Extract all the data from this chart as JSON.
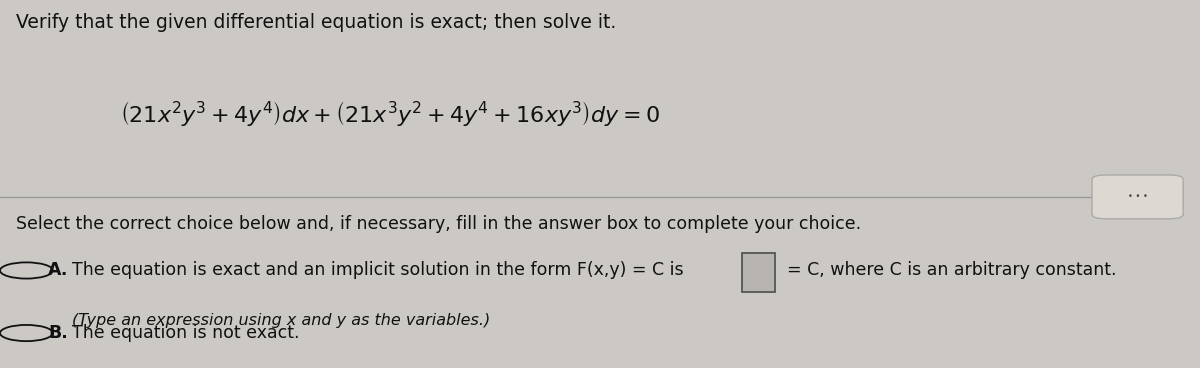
{
  "background_color": "#ccc8c4",
  "title_text": "Verify that the given differential equation is exact; then solve it.",
  "select_text": "Select the correct choice below and, if necessary, fill in the answer box to complete your choice.",
  "option_a_main": "The equation is exact and an implicit solution in the form F(x,y) = C is",
  "option_a_sub": "(Type an expression using x and y as the variables.)",
  "option_a_suffix": "= C, where C is an arbitrary constant.",
  "option_b": "The equation is not exact.",
  "font_color": "#111111",
  "title_fontsize": 13.5,
  "eq_fontsize": 16,
  "body_fontsize": 12.5,
  "sub_fontsize": 11.5,
  "separator_color": "#999999",
  "dots_button_color": "#ddd8d2",
  "dots_button_border": "#aaaaaa",
  "answer_box_fill": "#b8b4b0",
  "answer_box_border": "#555555"
}
